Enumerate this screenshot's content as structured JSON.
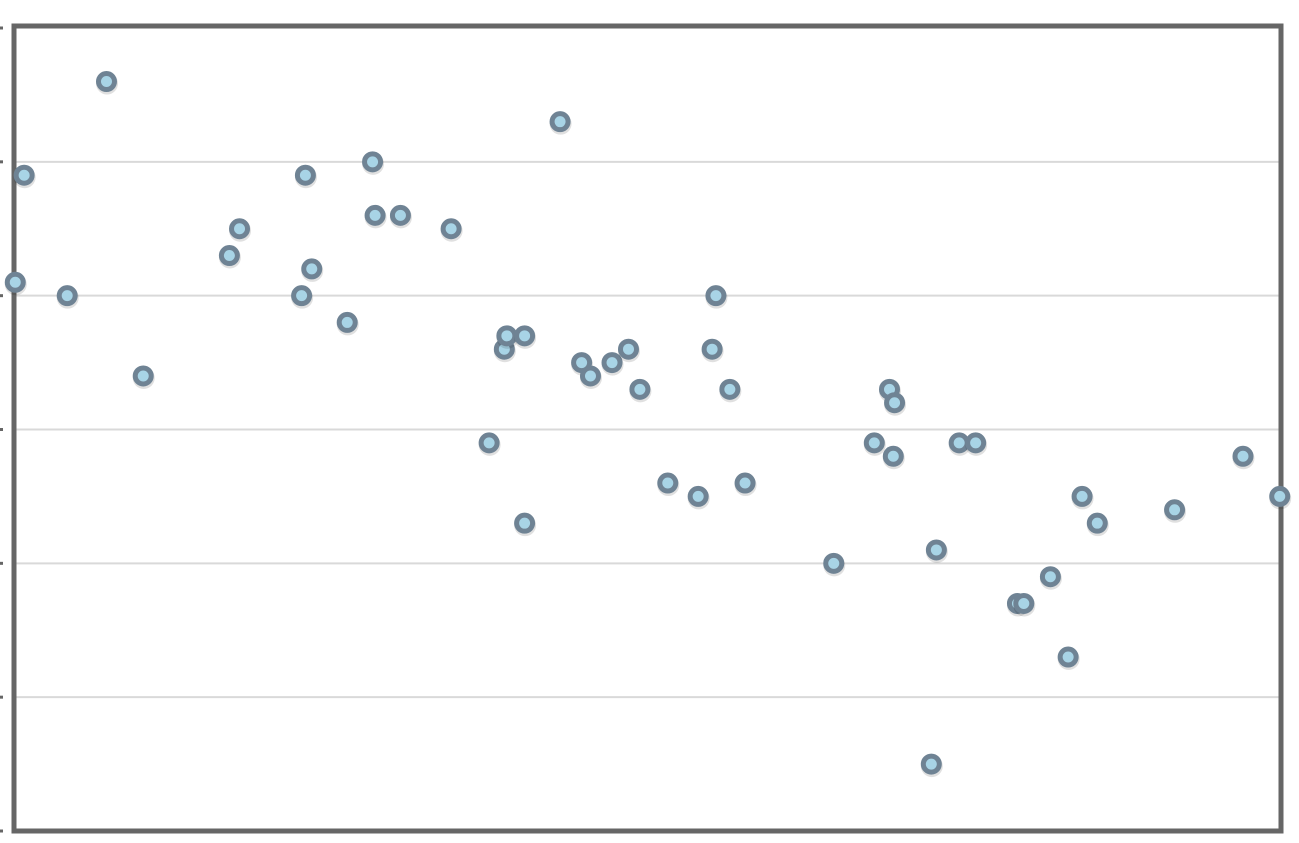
{
  "chart_data": {
    "type": "scatter",
    "title": "",
    "xlabel": "",
    "ylabel": "",
    "grid": "horizontal",
    "legend": "none",
    "xlim": [
      0,
      100
    ],
    "ylim": [
      0,
      6
    ],
    "yticks": [
      0,
      1,
      2,
      3,
      4,
      5,
      6
    ],
    "series": [
      {
        "marker_fill": "#a8d4e6",
        "marker_edge": "#6f8394",
        "points": [
          {
            "x": 0.1,
            "y": 4.1
          },
          {
            "x": 0.8,
            "y": 4.9
          },
          {
            "x": 4.2,
            "y": 4.0
          },
          {
            "x": 7.3,
            "y": 5.6
          },
          {
            "x": 10.2,
            "y": 3.4
          },
          {
            "x": 17.0,
            "y": 4.3
          },
          {
            "x": 17.8,
            "y": 4.5
          },
          {
            "x": 22.7,
            "y": 4.0
          },
          {
            "x": 23.0,
            "y": 4.9
          },
          {
            "x": 23.5,
            "y": 4.2
          },
          {
            "x": 26.3,
            "y": 3.8
          },
          {
            "x": 28.3,
            "y": 5.0
          },
          {
            "x": 28.5,
            "y": 4.6
          },
          {
            "x": 30.5,
            "y": 4.6
          },
          {
            "x": 34.5,
            "y": 4.5
          },
          {
            "x": 37.5,
            "y": 2.9
          },
          {
            "x": 38.7,
            "y": 3.6
          },
          {
            "x": 38.9,
            "y": 3.7
          },
          {
            "x": 40.3,
            "y": 2.3
          },
          {
            "x": 40.3,
            "y": 3.7
          },
          {
            "x": 43.1,
            "y": 5.3
          },
          {
            "x": 44.8,
            "y": 3.5
          },
          {
            "x": 45.5,
            "y": 3.4
          },
          {
            "x": 47.2,
            "y": 3.5
          },
          {
            "x": 48.5,
            "y": 3.6
          },
          {
            "x": 49.4,
            "y": 3.3
          },
          {
            "x": 51.6,
            "y": 2.6
          },
          {
            "x": 54.0,
            "y": 2.5
          },
          {
            "x": 55.1,
            "y": 3.6
          },
          {
            "x": 55.4,
            "y": 4.0
          },
          {
            "x": 56.5,
            "y": 3.3
          },
          {
            "x": 57.7,
            "y": 2.6
          },
          {
            "x": 64.7,
            "y": 2.0
          },
          {
            "x": 67.9,
            "y": 2.9
          },
          {
            "x": 69.1,
            "y": 3.3
          },
          {
            "x": 69.5,
            "y": 3.2
          },
          {
            "x": 69.4,
            "y": 2.8
          },
          {
            "x": 72.4,
            "y": 0.5
          },
          {
            "x": 72.8,
            "y": 2.1
          },
          {
            "x": 74.6,
            "y": 2.9
          },
          {
            "x": 75.9,
            "y": 2.9
          },
          {
            "x": 79.2,
            "y": 1.7
          },
          {
            "x": 79.7,
            "y": 1.7
          },
          {
            "x": 81.8,
            "y": 1.9
          },
          {
            "x": 83.2,
            "y": 1.3
          },
          {
            "x": 84.3,
            "y": 2.5
          },
          {
            "x": 85.5,
            "y": 2.3
          },
          {
            "x": 91.6,
            "y": 2.4
          },
          {
            "x": 97.0,
            "y": 2.8
          },
          {
            "x": 99.9,
            "y": 2.5
          }
        ]
      }
    ]
  }
}
